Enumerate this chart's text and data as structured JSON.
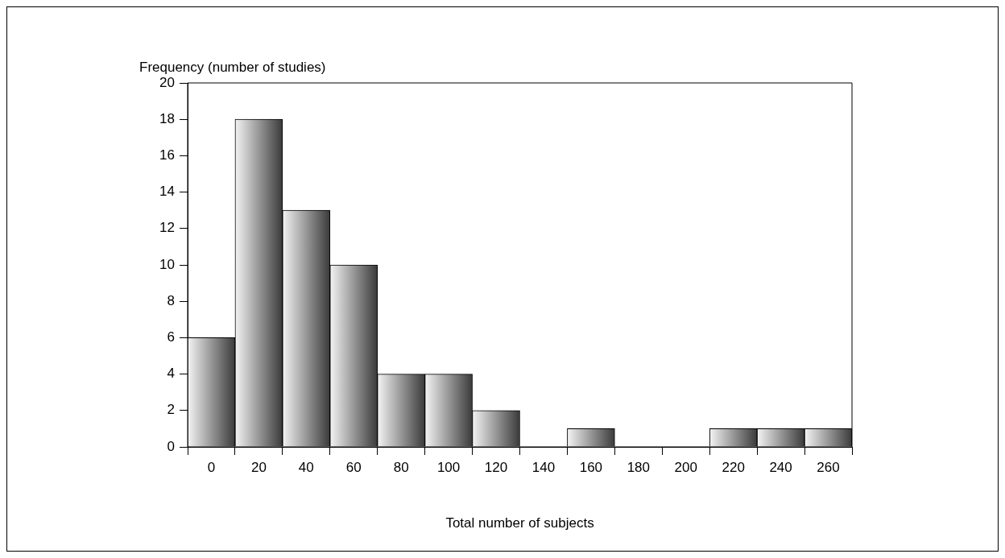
{
  "chart_data": {
    "type": "histogram",
    "xlabel": "Total number of subjects",
    "ylabel": "Frequency (number of studies)",
    "bins": [
      -10,
      10,
      30,
      50,
      70,
      90,
      110,
      130,
      150,
      170,
      190,
      210,
      230,
      250,
      270
    ],
    "values": [
      6,
      18,
      13,
      10,
      4,
      4,
      2,
      0,
      1,
      0,
      0,
      1,
      1,
      1
    ],
    "color": "#3a3a3a",
    "xlim": [
      -10,
      270
    ],
    "xticks": [
      0,
      20,
      40,
      60,
      80,
      100,
      120,
      140,
      160,
      180,
      200,
      220,
      240,
      260
    ],
    "ylim": [
      0,
      20
    ],
    "yticks": [
      0,
      2,
      4,
      6,
      8,
      10,
      12,
      14,
      16,
      18,
      20
    ],
    "grid": false,
    "legend": false
  }
}
